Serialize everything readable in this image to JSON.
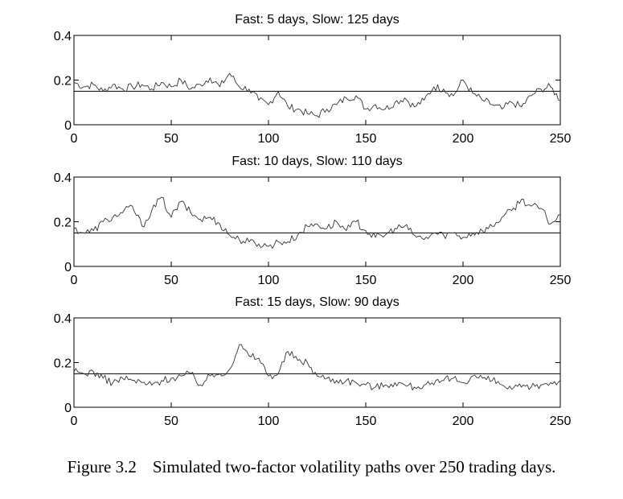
{
  "caption": {
    "label": "Figure 3.2",
    "text": "Simulated two-factor volatility paths over 250 trading days."
  },
  "chart_data": [
    {
      "type": "line",
      "title": "Fast: 5 days, Slow: 125 days",
      "xlim": [
        0,
        250
      ],
      "ylim": [
        0,
        0.4
      ],
      "x_ticks": [
        "0",
        "50",
        "100",
        "150",
        "200",
        "250"
      ],
      "y_ticks": [
        "0",
        "0.2",
        "0.4"
      ],
      "reference_level": 0.15,
      "series": [
        {
          "x": [
            0,
            5,
            10,
            15,
            20,
            25,
            30,
            35,
            40,
            45,
            50,
            55,
            60,
            65,
            70,
            75,
            80,
            85,
            90,
            95,
            100,
            105,
            110,
            115,
            120,
            125,
            130,
            135,
            140,
            145,
            150,
            155,
            160,
            165,
            170,
            175,
            180,
            185,
            190,
            195,
            200,
            205,
            210,
            215,
            220,
            225,
            230,
            235,
            240,
            245,
            250
          ],
          "values": [
            0.19,
            0.17,
            0.18,
            0.15,
            0.18,
            0.16,
            0.17,
            0.18,
            0.16,
            0.19,
            0.17,
            0.2,
            0.16,
            0.18,
            0.21,
            0.17,
            0.23,
            0.17,
            0.16,
            0.11,
            0.09,
            0.15,
            0.08,
            0.07,
            0.05,
            0.04,
            0.07,
            0.09,
            0.12,
            0.13,
            0.07,
            0.09,
            0.07,
            0.1,
            0.12,
            0.08,
            0.11,
            0.17,
            0.16,
            0.13,
            0.2,
            0.14,
            0.11,
            0.09,
            0.07,
            0.1,
            0.08,
            0.13,
            0.16,
            0.17,
            0.11
          ]
        }
      ]
    },
    {
      "type": "line",
      "title": "Fast: 10 days, Slow: 110 days",
      "xlim": [
        0,
        250
      ],
      "ylim": [
        0,
        0.4
      ],
      "x_ticks": [
        "0",
        "50",
        "100",
        "150",
        "200",
        "250"
      ],
      "y_ticks": [
        "0",
        "0.2",
        "0.4"
      ],
      "reference_level": 0.15,
      "series": [
        {
          "x": [
            0,
            5,
            10,
            15,
            20,
            25,
            30,
            35,
            40,
            45,
            50,
            55,
            60,
            65,
            70,
            75,
            80,
            85,
            90,
            95,
            100,
            105,
            110,
            115,
            120,
            125,
            130,
            135,
            140,
            145,
            150,
            155,
            160,
            165,
            170,
            175,
            180,
            185,
            190,
            195,
            200,
            205,
            210,
            215,
            220,
            225,
            230,
            235,
            240,
            245,
            250
          ],
          "values": [
            0.17,
            0.15,
            0.16,
            0.2,
            0.22,
            0.24,
            0.27,
            0.18,
            0.25,
            0.31,
            0.22,
            0.29,
            0.24,
            0.21,
            0.22,
            0.19,
            0.14,
            0.12,
            0.11,
            0.1,
            0.09,
            0.11,
            0.11,
            0.14,
            0.18,
            0.19,
            0.17,
            0.2,
            0.16,
            0.2,
            0.16,
            0.13,
            0.14,
            0.17,
            0.18,
            0.14,
            0.12,
            0.15,
            0.14,
            0.15,
            0.13,
            0.15,
            0.16,
            0.18,
            0.22,
            0.25,
            0.3,
            0.27,
            0.26,
            0.19,
            0.23
          ]
        }
      ]
    },
    {
      "type": "line",
      "title": "Fast: 15 days, Slow: 90 days",
      "xlim": [
        0,
        250
      ],
      "ylim": [
        0,
        0.4
      ],
      "x_ticks": [
        "0",
        "50",
        "100",
        "150",
        "200",
        "250"
      ],
      "y_ticks": [
        "0",
        "0.2",
        "0.4"
      ],
      "reference_level": 0.15,
      "series": [
        {
          "x": [
            0,
            5,
            10,
            15,
            20,
            25,
            30,
            35,
            40,
            45,
            50,
            55,
            60,
            65,
            70,
            75,
            80,
            85,
            90,
            95,
            100,
            105,
            110,
            115,
            120,
            125,
            130,
            135,
            140,
            145,
            150,
            155,
            160,
            165,
            170,
            175,
            180,
            185,
            190,
            195,
            200,
            205,
            210,
            215,
            220,
            225,
            230,
            235,
            240,
            245,
            250
          ],
          "values": [
            0.16,
            0.15,
            0.16,
            0.13,
            0.11,
            0.13,
            0.12,
            0.11,
            0.1,
            0.12,
            0.13,
            0.14,
            0.15,
            0.1,
            0.14,
            0.15,
            0.17,
            0.28,
            0.23,
            0.22,
            0.14,
            0.15,
            0.25,
            0.21,
            0.2,
            0.14,
            0.13,
            0.12,
            0.12,
            0.11,
            0.1,
            0.09,
            0.1,
            0.11,
            0.1,
            0.09,
            0.1,
            0.1,
            0.12,
            0.13,
            0.11,
            0.14,
            0.13,
            0.12,
            0.1,
            0.08,
            0.09,
            0.09,
            0.1,
            0.11,
            0.12
          ]
        }
      ]
    }
  ]
}
